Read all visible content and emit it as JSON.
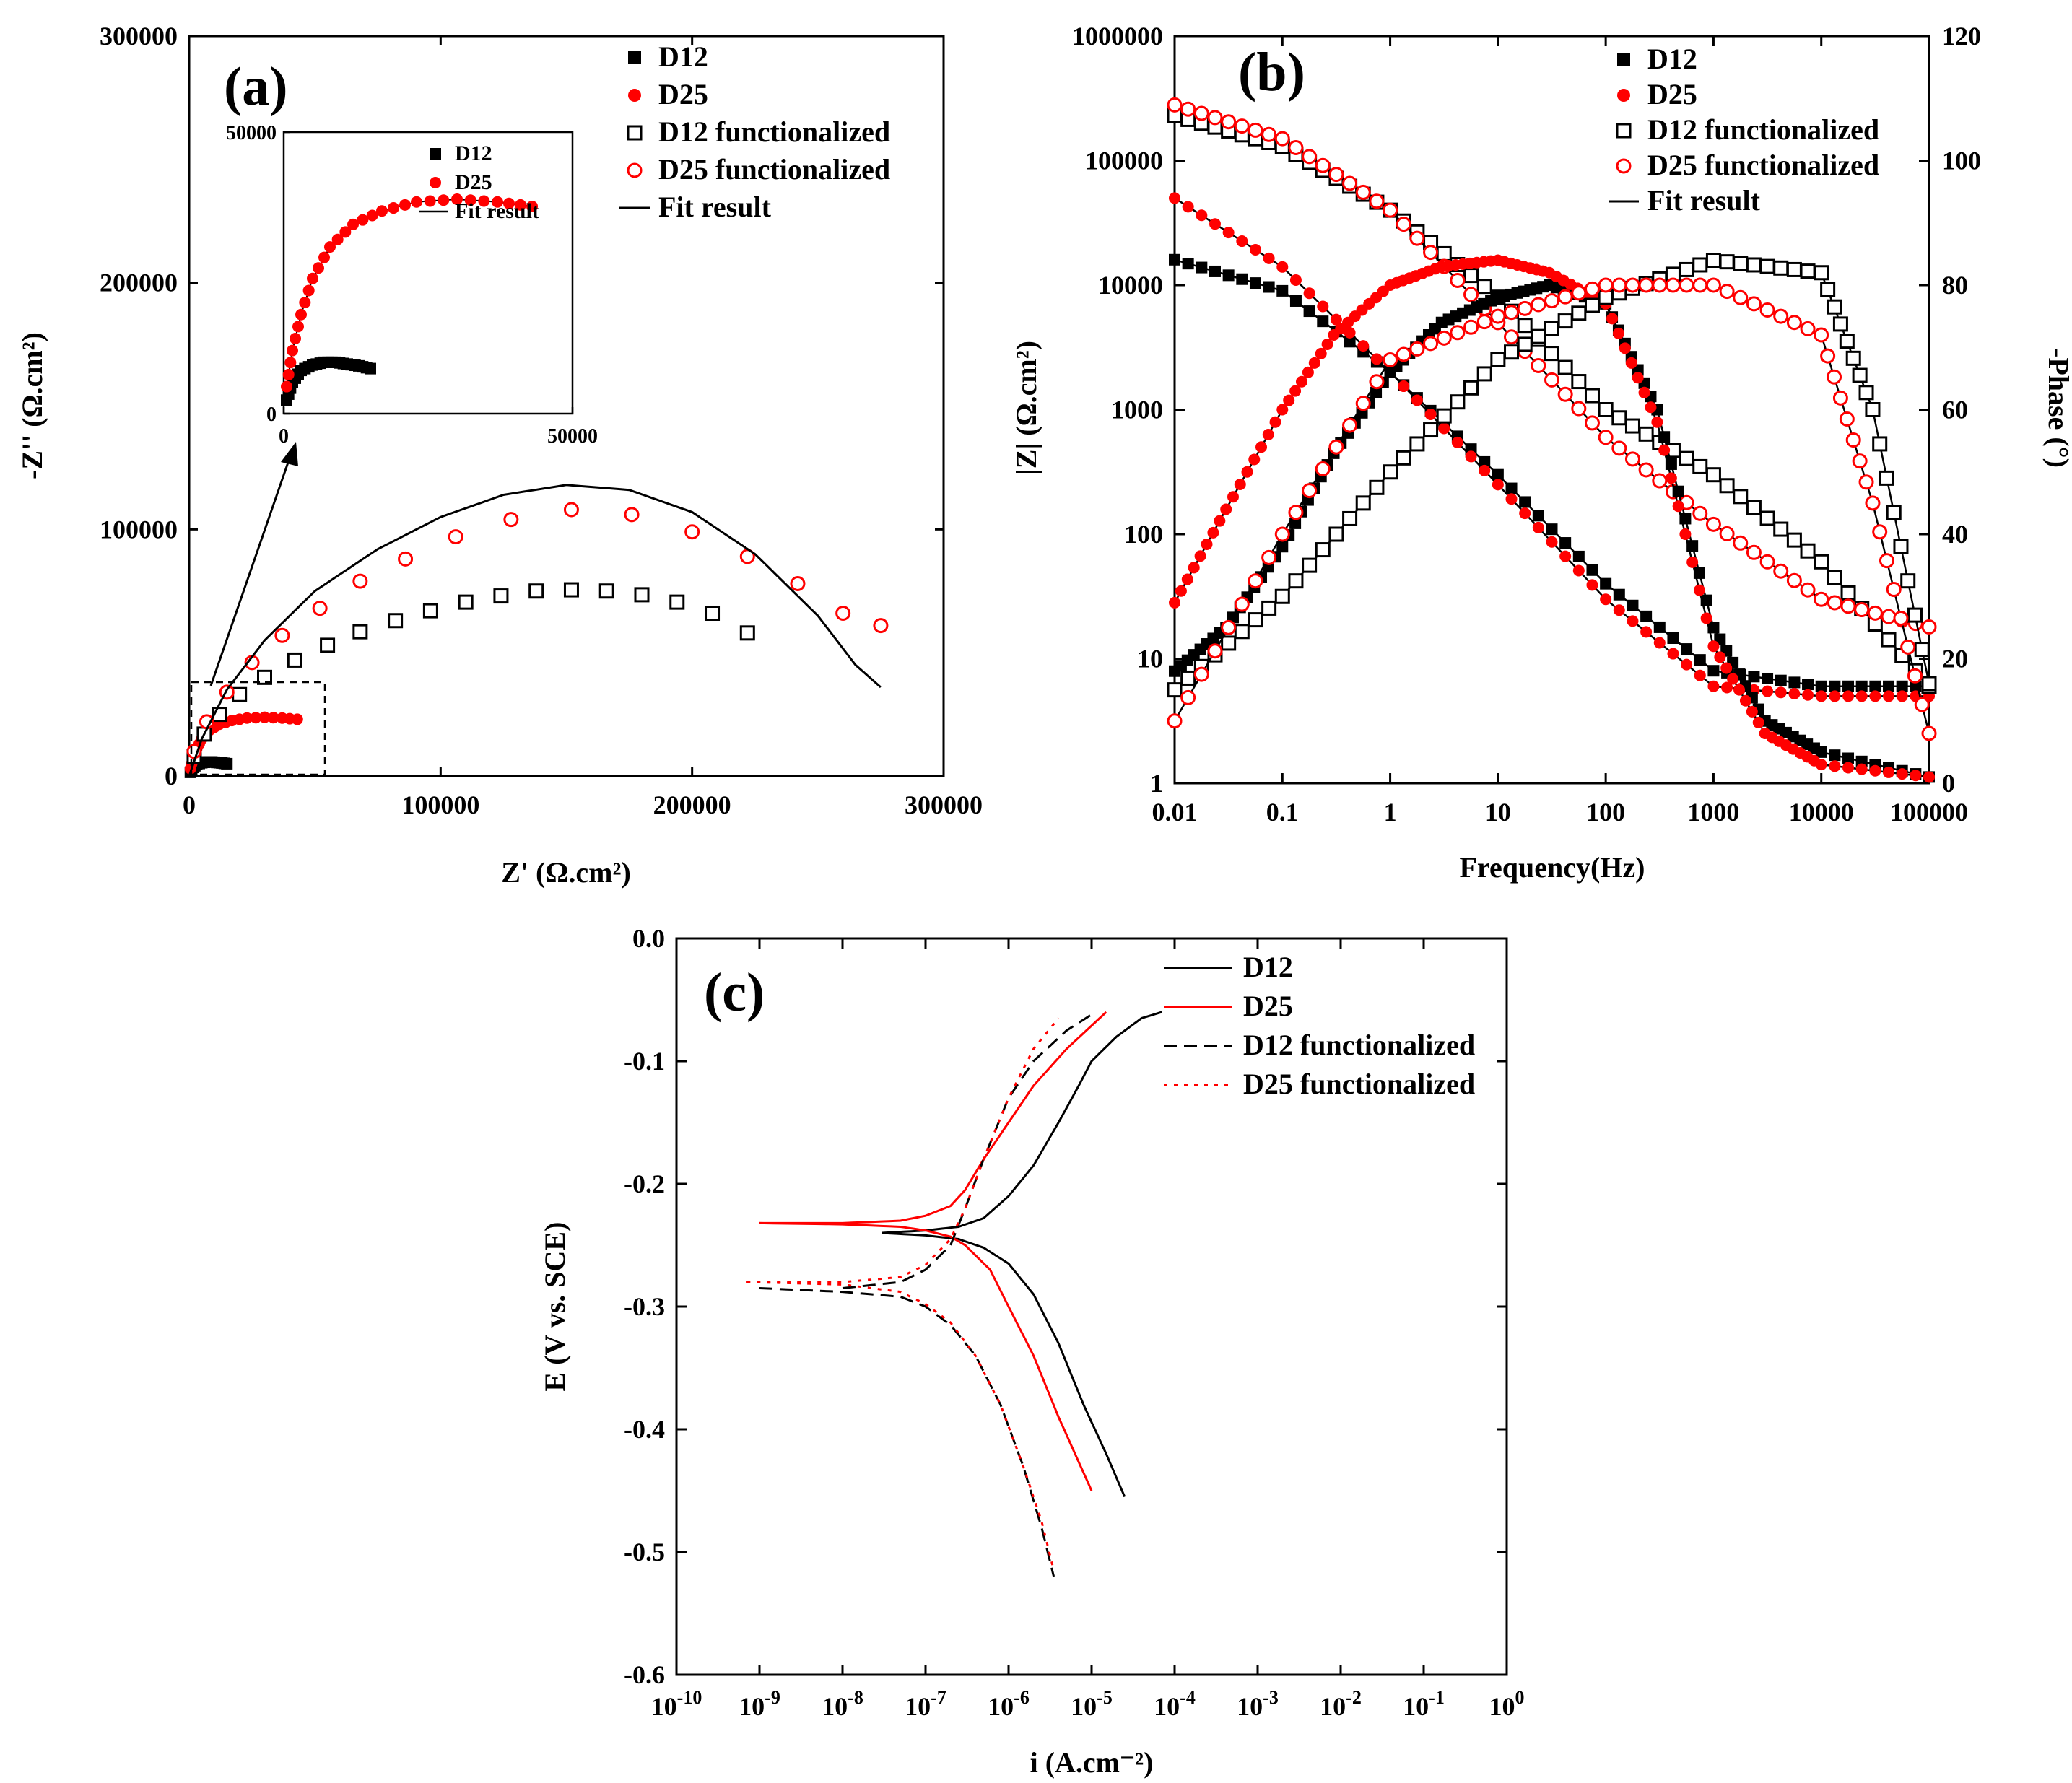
{
  "chart_data": [
    {
      "panel": "(a)",
      "type": "scatter",
      "title": "",
      "xlabel": "Z' (Ω.cm²)",
      "ylabel": "-Z'' (Ω.cm²)",
      "xlim": [
        0,
        300000
      ],
      "ylim": [
        0,
        300000
      ],
      "xticks": [
        "0",
        "100000",
        "200000",
        "300000"
      ],
      "yticks": [
        "0",
        "100000",
        "200000",
        "300000"
      ],
      "legend": [
        "D12",
        "D25",
        "D12 functionalized",
        "D25 functionalized",
        "Fit result"
      ],
      "series": [
        {
          "name": "D12",
          "marker": "filled-square",
          "color": "#000000",
          "x": [
            500,
            1500,
            3000,
            5000,
            7000,
            9000,
            11000,
            13000,
            15000
          ],
          "y": [
            1500,
            3500,
            4800,
            5400,
            5700,
            5700,
            5500,
            5300,
            5000
          ]
        },
        {
          "name": "D25",
          "marker": "filled-circle",
          "color": "#ff0000",
          "x": [
            500,
            1500,
            3000,
            5000,
            8000,
            12000,
            17000,
            23000,
            30000,
            37000,
            43000
          ],
          "y": [
            3000,
            7000,
            11000,
            15000,
            18500,
            21000,
            22500,
            23500,
            23800,
            23500,
            23000
          ]
        },
        {
          "name": "D12 functionalized",
          "marker": "open-square",
          "color": "#000000",
          "x": [
            2000,
            6000,
            12000,
            20000,
            30000,
            42000,
            55000,
            68000,
            82000,
            96000,
            110000,
            124000,
            138000,
            152000,
            166000,
            180000,
            194000,
            208000,
            222000
          ],
          "y": [
            8000,
            17000,
            25000,
            33000,
            40000,
            47000,
            53000,
            58500,
            63000,
            67000,
            70500,
            73000,
            75000,
            75500,
            75000,
            73500,
            70500,
            66000,
            58000
          ]
        },
        {
          "name": "D25 functionalized",
          "marker": "open-circle",
          "color": "#ff0000",
          "x": [
            2000,
            7000,
            15000,
            25000,
            37000,
            52000,
            68000,
            86000,
            106000,
            128000,
            152000,
            176000,
            200000,
            222000,
            242000,
            260000,
            275000
          ],
          "y": [
            10000,
            22000,
            34000,
            46000,
            57000,
            68000,
            79000,
            88000,
            97000,
            104000,
            108000,
            106000,
            99000,
            89000,
            78000,
            66000,
            61000
          ]
        },
        {
          "name": "Fit result",
          "marker": "line",
          "color": "#000000",
          "x": [
            0,
            5000,
            15000,
            30000,
            50000,
            75000,
            100000,
            125000,
            150000,
            175000,
            200000,
            225000,
            250000,
            265000,
            275000
          ],
          "y": [
            0,
            15000,
            35000,
            55000,
            75000,
            92000,
            105000,
            114000,
            118000,
            116000,
            107000,
            90000,
            65000,
            45000,
            36000
          ]
        }
      ],
      "inset": {
        "xlim": [
          0,
          50000
        ],
        "ylim": [
          0,
          50000
        ],
        "xticks": [
          "0",
          "50000"
        ],
        "yticks": [
          "0",
          "50000"
        ],
        "legend": [
          "D12",
          "D25",
          "Fit result"
        ]
      }
    },
    {
      "panel": "(b)",
      "type": "line",
      "title": "",
      "xlabel": "Frequency(Hz)",
      "ylabel": "|Z| (Ω.cm²)",
      "y2label": "-Phase (°)",
      "xscale": "log",
      "xlim": [
        0.01,
        100000
      ],
      "ylim": [
        1,
        1000000
      ],
      "y2lim": [
        0,
        120
      ],
      "xticks": [
        "0.01",
        "0.1",
        "1",
        "10",
        "100",
        "1000",
        "10000",
        "100000"
      ],
      "yticks": [
        "1",
        "10",
        "100",
        "1000",
        "10000",
        "100000",
        "1000000"
      ],
      "y2ticks": [
        "0",
        "20",
        "40",
        "60",
        "80",
        "100",
        "120"
      ],
      "legend": [
        "D12",
        "D25",
        "D12 functionalized",
        "D25 functionalized",
        "Fit result"
      ],
      "series": [
        {
          "name": "D12 |Z|",
          "marker": "filled-square",
          "color": "#000000",
          "x": [
            0.01,
            0.1,
            1,
            10,
            100,
            1000,
            10000,
            100000
          ],
          "y": [
            16000,
            9000,
            2000,
            300,
            40,
            8,
            6,
            6
          ]
        },
        {
          "name": "D25 |Z|",
          "marker": "filled-circle",
          "color": "#ff0000",
          "x": [
            0.01,
            0.1,
            1,
            10,
            100,
            1000,
            10000,
            100000
          ],
          "y": [
            50000,
            14000,
            2000,
            250,
            30,
            6,
            5,
            5
          ]
        },
        {
          "name": "D12 functionalized |Z|",
          "marker": "open-square",
          "color": "#000000",
          "x": [
            0.01,
            0.1,
            1,
            10,
            100,
            1000,
            10000,
            100000
          ],
          "y": [
            230000,
            130000,
            40000,
            8000,
            1000,
            300,
            60,
            6
          ]
        },
        {
          "name": "D25 functionalized |Z|",
          "marker": "open-circle",
          "color": "#ff0000",
          "x": [
            0.01,
            0.1,
            1,
            10,
            100,
            1000,
            10000,
            100000
          ],
          "y": [
            280000,
            150000,
            40000,
            5000,
            600,
            120,
            30,
            18
          ]
        },
        {
          "name": "D12 phase",
          "marker": "filled-square",
          "color": "#000000",
          "x": [
            0.01,
            0.03,
            0.1,
            0.3,
            1,
            3,
            10,
            30,
            100,
            300,
            1000,
            3000,
            10000,
            100000
          ],
          "y": [
            18,
            25,
            38,
            53,
            66,
            74,
            78,
            80,
            77,
            60,
            25,
            10,
            5,
            1
          ]
        },
        {
          "name": "D25 phase",
          "marker": "filled-circle",
          "color": "#ff0000",
          "x": [
            0.01,
            0.03,
            0.1,
            0.3,
            1,
            3,
            10,
            30,
            100,
            300,
            1000,
            3000,
            10000,
            100000
          ],
          "y": [
            29,
            44,
            60,
            72,
            80,
            83,
            84,
            82,
            77,
            58,
            22,
            8,
            3,
            1
          ]
        },
        {
          "name": "D12 functionalized phase",
          "marker": "open-square",
          "color": "#000000",
          "x": [
            0.01,
            0.1,
            1,
            10,
            100,
            1000,
            10000,
            30000,
            100000
          ],
          "y": [
            15,
            30,
            50,
            68,
            78,
            84,
            82,
            60,
            16
          ]
        },
        {
          "name": "D25 functionalized phase",
          "marker": "open-circle",
          "color": "#ff0000",
          "x": [
            0.01,
            0.1,
            1,
            10,
            100,
            1000,
            10000,
            30000,
            100000
          ],
          "y": [
            10,
            40,
            68,
            75,
            80,
            80,
            72,
            45,
            8
          ]
        }
      ]
    },
    {
      "panel": "(c)",
      "type": "line",
      "title": "",
      "xlabel": "i (A.cm⁻²)",
      "ylabel": "E (V vs. SCE)",
      "xscale": "log",
      "xlim": [
        1e-10,
        1
      ],
      "ylim": [
        -0.6,
        0.0
      ],
      "xticks": [
        "10-10",
        "10-9",
        "10-8",
        "10-7",
        "10-6",
        "10-5",
        "10-4",
        "10-3",
        "10-2",
        "10-1",
        "100"
      ],
      "yticks": [
        "0.0",
        "-0.1",
        "-0.2",
        "-0.3",
        "-0.4",
        "-0.5",
        "-0.6"
      ],
      "legend": [
        "D12",
        "D25",
        "D12 functionalized",
        "D25 functionalized"
      ],
      "series": [
        {
          "name": "D12",
          "style": "solid",
          "color": "#000000",
          "x": [
            3e-08,
            1e-07,
            2.5e-07,
            5e-07,
            1e-06,
            2e-06,
            4e-06,
            7e-06,
            1e-05,
            2e-05,
            4e-05,
            7e-05
          ],
          "y": [
            -0.24,
            -0.238,
            -0.235,
            -0.228,
            -0.21,
            -0.185,
            -0.15,
            -0.12,
            -0.1,
            -0.08,
            -0.065,
            -0.06
          ],
          "x2": [
            3e-08,
            1e-07,
            2.5e-07,
            5e-07,
            1e-06,
            2e-06,
            4e-06,
            8e-06,
            1.5e-05,
            2.5e-05
          ],
          "y2": [
            -0.24,
            -0.242,
            -0.245,
            -0.252,
            -0.265,
            -0.29,
            -0.33,
            -0.38,
            -0.42,
            -0.455
          ]
        },
        {
          "name": "D25",
          "style": "solid",
          "color": "#ff0000",
          "x": [
            1e-09,
            1e-08,
            5e-08,
            1e-07,
            2e-07,
            3e-07,
            5e-07,
            1e-06,
            2e-06,
            5e-06,
            1.5e-05
          ],
          "y": [
            -0.232,
            -0.232,
            -0.23,
            -0.226,
            -0.218,
            -0.205,
            -0.18,
            -0.15,
            -0.12,
            -0.09,
            -0.06
          ],
          "x2": [
            1e-09,
            1e-08,
            5e-08,
            1e-07,
            2e-07,
            3e-07,
            6e-07,
            1e-06,
            2e-06,
            4e-06,
            1e-05
          ],
          "y2": [
            -0.232,
            -0.233,
            -0.235,
            -0.238,
            -0.243,
            -0.25,
            -0.27,
            -0.3,
            -0.34,
            -0.39,
            -0.45
          ]
        },
        {
          "name": "D12 functionalized",
          "style": "dashed",
          "color": "#000000",
          "x": [
            1e-08,
            5e-08,
            1e-07,
            2e-07,
            3e-07,
            5e-07,
            1e-06,
            2e-06,
            5e-06,
            1e-05
          ],
          "y": [
            -0.285,
            -0.28,
            -0.27,
            -0.25,
            -0.22,
            -0.18,
            -0.13,
            -0.1,
            -0.075,
            -0.062
          ],
          "x2": [
            1e-09,
            1e-08,
            5e-08,
            1e-07,
            2e-07,
            4e-07,
            8e-07,
            1.5e-06,
            2.5e-06,
            3.5e-06
          ],
          "y2": [
            -0.285,
            -0.288,
            -0.292,
            -0.3,
            -0.315,
            -0.34,
            -0.38,
            -0.43,
            -0.48,
            -0.52
          ]
        },
        {
          "name": "D25 functionalized",
          "style": "dotted",
          "color": "#ff0000",
          "x": [
            7e-10,
            1e-08,
            5e-08,
            1e-07,
            2e-07,
            3e-07,
            5e-07,
            1e-06,
            2e-06,
            4e-06
          ],
          "y": [
            -0.28,
            -0.28,
            -0.276,
            -0.266,
            -0.245,
            -0.22,
            -0.18,
            -0.13,
            -0.09,
            -0.065
          ],
          "x2": [
            7e-10,
            1e-08,
            5e-08,
            1e-07,
            2e-07,
            4e-07,
            8e-07,
            1.5e-06,
            2.5e-06,
            3.5e-06
          ],
          "y2": [
            -0.28,
            -0.282,
            -0.288,
            -0.298,
            -0.313,
            -0.34,
            -0.38,
            -0.43,
            -0.475,
            -0.515
          ]
        }
      ]
    }
  ]
}
